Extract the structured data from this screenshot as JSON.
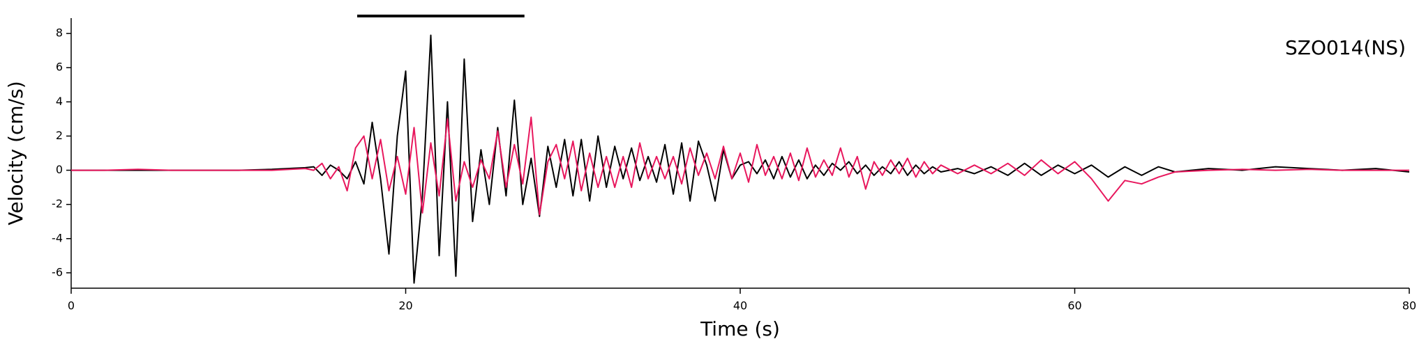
{
  "chart_data": {
    "type": "line",
    "annotation": "SZO014(NS)",
    "x_label": "Time (s)",
    "y_label": "Velocity (cm/s)",
    "highlight_xrange": [
      17.1,
      27.1
    ],
    "highlight_color": "#000000",
    "xlim": [
      0,
      80
    ],
    "xticks": [
      0,
      20,
      40,
      60,
      80
    ],
    "ylim": [
      -6.9,
      8.9
    ],
    "yticks": [
      -6,
      -4,
      -2,
      0,
      2,
      4,
      6,
      8
    ],
    "grid": false,
    "x": [
      0,
      2,
      4,
      6,
      8,
      10,
      12,
      14,
      14.5,
      15,
      15.5,
      16,
      16.5,
      17,
      17.5,
      18,
      18.5,
      19,
      19.5,
      20,
      20.5,
      21,
      21.5,
      22,
      22.5,
      23,
      23.5,
      24,
      24.5,
      25,
      25.5,
      26,
      26.5,
      27,
      27.5,
      28,
      28.5,
      29,
      29.5,
      30,
      30.5,
      31,
      31.5,
      32,
      32.5,
      33,
      33.5,
      34,
      34.5,
      35,
      35.5,
      36,
      36.5,
      37,
      37.5,
      38,
      38.5,
      39,
      39.5,
      40,
      40.5,
      41,
      41.5,
      42,
      42.5,
      43,
      43.5,
      44,
      44.5,
      45,
      45.5,
      46,
      46.5,
      47,
      47.5,
      48,
      48.5,
      49,
      49.5,
      50,
      50.5,
      51,
      51.5,
      52,
      53,
      54,
      55,
      56,
      57,
      58,
      59,
      60,
      61,
      62,
      63,
      64,
      65,
      66,
      68,
      70,
      72,
      74,
      76,
      78,
      80
    ],
    "series": [
      {
        "color": "#000000",
        "values": [
          0,
          0,
          0,
          0,
          0,
          0,
          0.05,
          0.15,
          0.2,
          -0.3,
          0.3,
          0,
          -0.5,
          0.5,
          -0.8,
          2.8,
          -0.5,
          -4.9,
          2,
          5.8,
          -6.6,
          -1.5,
          7.9,
          -5,
          4,
          -6.2,
          6.5,
          -3,
          1.2,
          -2,
          2.5,
          -1.5,
          4.1,
          -2,
          0.7,
          -2.7,
          1.4,
          -1,
          1.8,
          -1.5,
          1.8,
          -1.8,
          2,
          -1,
          1.4,
          -0.5,
          1.3,
          -0.6,
          0.8,
          -0.7,
          1.5,
          -1.4,
          1.6,
          -1.8,
          1.7,
          0.3,
          -1.8,
          1.2,
          -0.5,
          0.3,
          0.5,
          -0.2,
          0.6,
          -0.5,
          0.8,
          -0.4,
          0.6,
          -0.5,
          0.3,
          -0.3,
          0.4,
          0,
          0.5,
          -0.2,
          0.3,
          -0.3,
          0.2,
          -0.2,
          0.5,
          -0.3,
          0.3,
          -0.2,
          0.2,
          -0.1,
          0.1,
          -0.2,
          0.2,
          -0.3,
          0.4,
          -0.3,
          0.3,
          -0.2,
          0.3,
          -0.4,
          0.2,
          -0.3,
          0.2,
          -0.1,
          0.1,
          0,
          0.2,
          0.1,
          0,
          0.1,
          -0.1
        ]
      },
      {
        "color": "#e8175d",
        "values": [
          0,
          0,
          0.05,
          0,
          0,
          0,
          0,
          0.1,
          0,
          0.4,
          -0.5,
          0.2,
          -1.2,
          1.3,
          2,
          -0.5,
          1.8,
          -1.2,
          0.8,
          -1.4,
          2.5,
          -2.5,
          1.6,
          -1.5,
          3,
          -1.8,
          0.5,
          -1,
          0.6,
          -0.5,
          2.3,
          -1,
          1.5,
          -0.8,
          3.1,
          -2.6,
          0.5,
          1.5,
          -0.5,
          1.7,
          -1.2,
          1,
          -1,
          0.8,
          -1,
          0.8,
          -1,
          1.6,
          -0.5,
          0.8,
          -0.5,
          0.8,
          -0.8,
          1.3,
          -0.3,
          1,
          -0.5,
          1.4,
          -0.5,
          1,
          -0.7,
          1.5,
          -0.3,
          0.8,
          -0.5,
          1,
          -0.6,
          1.3,
          -0.4,
          0.6,
          -0.3,
          1.3,
          -0.4,
          0.8,
          -1.1,
          0.5,
          -0.3,
          0.6,
          -0.2,
          0.7,
          -0.4,
          0.5,
          -0.2,
          0.3,
          -0.2,
          0.3,
          -0.2,
          0.4,
          -0.3,
          0.6,
          -0.2,
          0.5,
          -0.5,
          -1.8,
          -0.6,
          -0.8,
          -0.4,
          -0.1,
          0,
          0.05,
          0,
          0.05,
          0,
          0,
          0
        ]
      }
    ]
  }
}
